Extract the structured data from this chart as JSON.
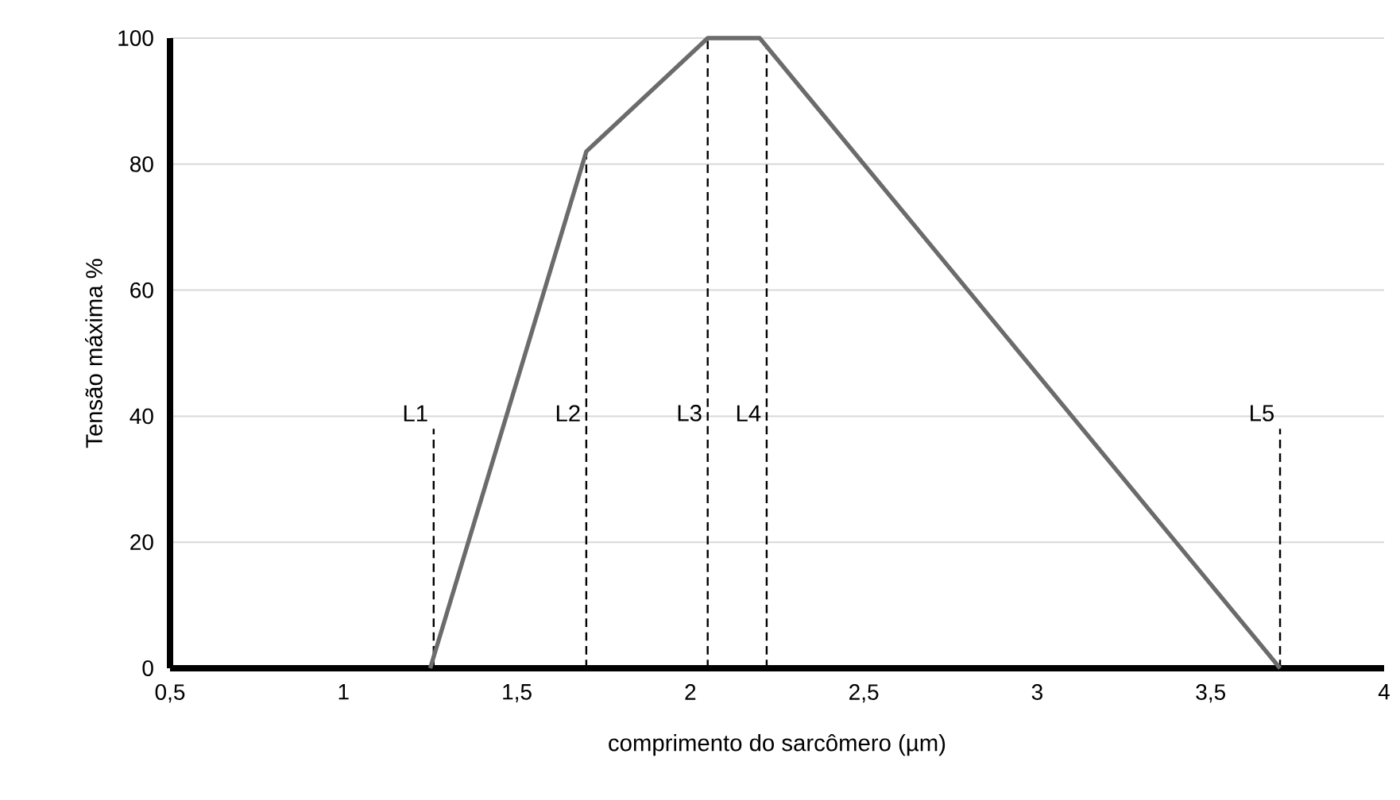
{
  "chart_data": {
    "type": "line",
    "xlabel": "comprimento do sarcômero (µm)",
    "ylabel": "Tensão máxima %",
    "series": [
      {
        "color": "#6b6b6b",
        "x": [
          1.25,
          1.7,
          2.05,
          2.2,
          3.7
        ],
        "values": [
          0,
          82,
          100,
          100,
          0
        ]
      }
    ],
    "xlim": [
      0.5,
      4
    ],
    "ylim": [
      0,
      100
    ],
    "xticks": [
      {
        "value": 0.5,
        "label": "0,5"
      },
      1,
      {
        "value": 1.5,
        "label": "1,5"
      },
      2,
      {
        "value": 2.5,
        "label": "2,5"
      },
      3,
      {
        "value": 3.5,
        "label": "3,5"
      },
      4
    ],
    "yticks": [
      0,
      20,
      40,
      60,
      80,
      100
    ],
    "grid": "y",
    "marker": "none",
    "line_style": "solid",
    "ref_lines": [
      {
        "axis": "x",
        "value": 1.26,
        "label": "L1",
        "line_style": "dashed"
      },
      {
        "axis": "x",
        "value": 1.7,
        "label": "L2",
        "line_style": "dashed"
      },
      {
        "axis": "x",
        "value": 2.05,
        "label": "L3",
        "line_style": "dashed"
      },
      {
        "axis": "x",
        "value": 2.22,
        "label": "L4",
        "line_style": "dashed"
      },
      {
        "axis": "x",
        "value": 3.7,
        "label": "L5",
        "line_style": "dashed"
      }
    ]
  }
}
